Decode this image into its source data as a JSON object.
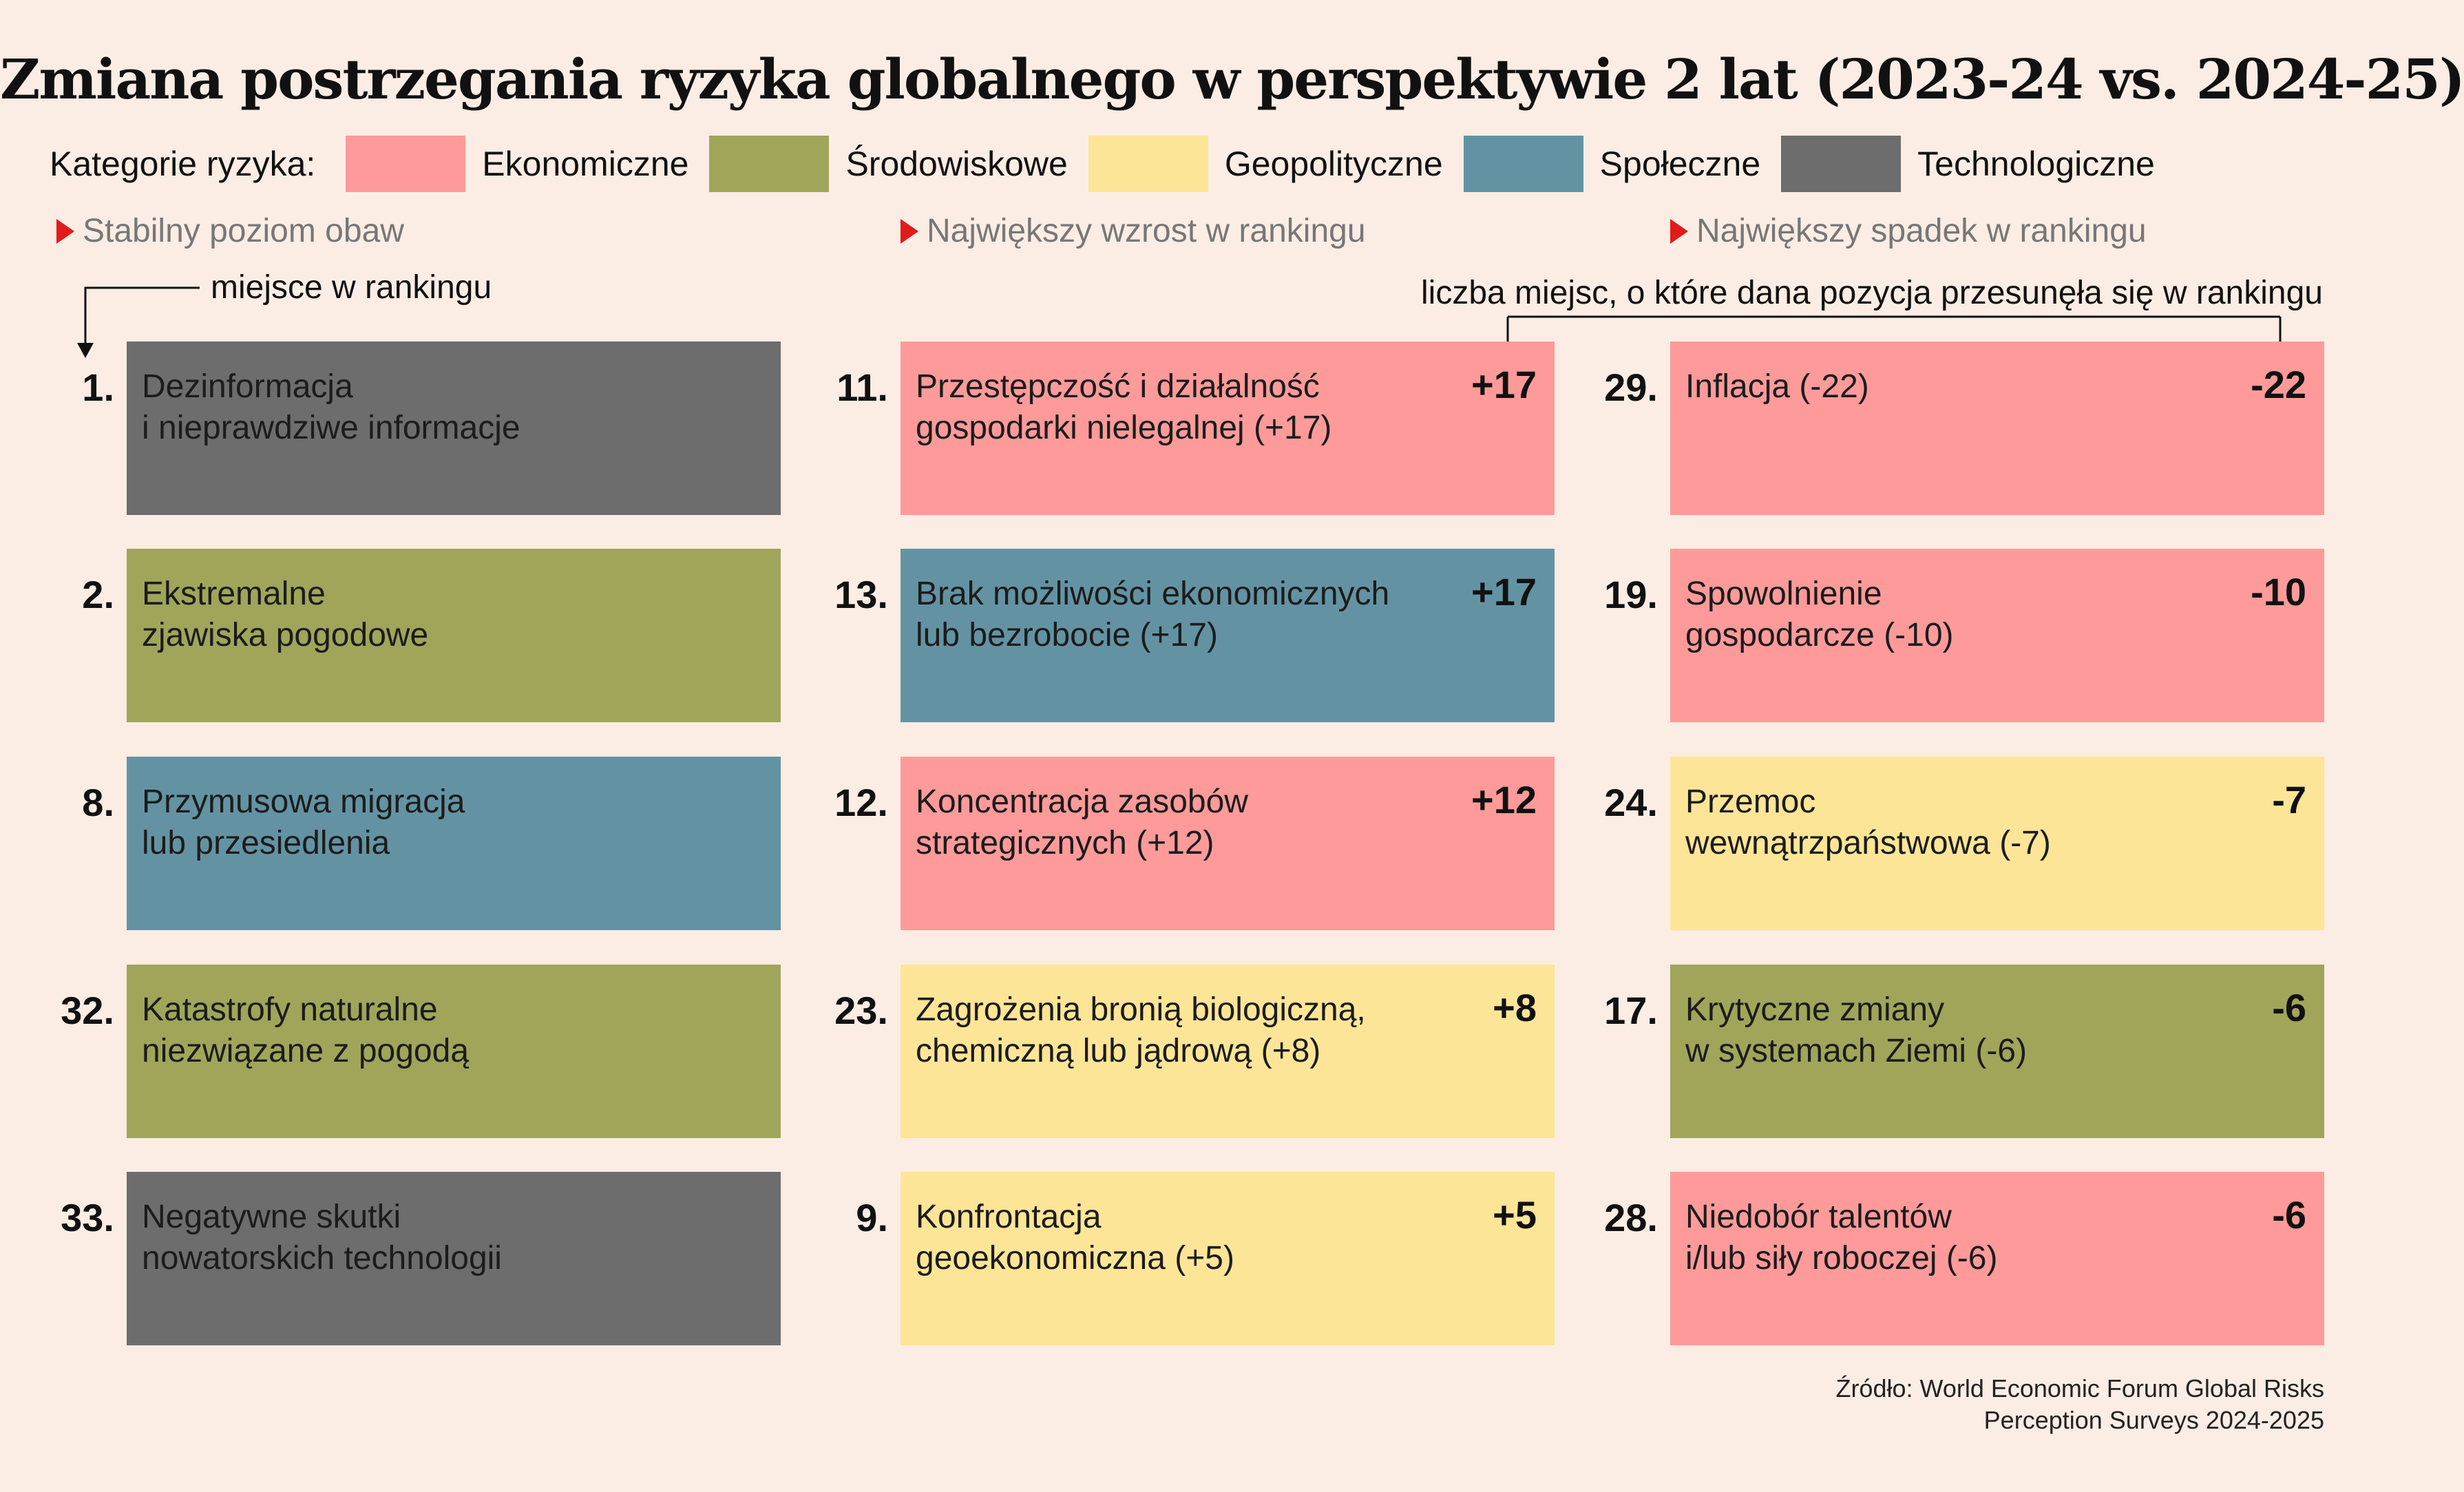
{
  "title": "Zmiana postrzegania ryzyka globalnego w perspektywie 2 lat (2023-24 vs. 2024-25)",
  "legend": {
    "label": "Kategorie ryzyka:",
    "items": [
      {
        "name": "Ekonomiczne",
        "color": "#fe9a9a"
      },
      {
        "name": "Środowiskowe",
        "color": "#a0a55a"
      },
      {
        "name": "Geopolityczne",
        "color": "#fde597"
      },
      {
        "name": "Społeczne",
        "color": "#6393a3"
      },
      {
        "name": "Technologiczne",
        "color": "#6d6d6d"
      }
    ]
  },
  "columns": [
    {
      "header": "Stabilny poziom obaw",
      "items": [
        {
          "rank": "1.",
          "line1": "Dezinformacja",
          "line2": "i nieprawdziwe informacje",
          "category": "Technologiczne",
          "color": "#6d6d6d",
          "change": ""
        },
        {
          "rank": "2.",
          "line1": "Ekstremalne",
          "line2": "zjawiska pogodowe",
          "category": "Środowiskowe",
          "color": "#a0a55a",
          "change": ""
        },
        {
          "rank": "8.",
          "line1": "Przymusowa migracja",
          "line2": "lub przesiedlenia",
          "category": "Społeczne",
          "color": "#6393a3",
          "change": ""
        },
        {
          "rank": "32.",
          "line1": "Katastrofy naturalne",
          "line2": "niezwiązane z pogodą",
          "category": "Środowiskowe",
          "color": "#a0a55a",
          "change": ""
        },
        {
          "rank": "33.",
          "line1": "Negatywne skutki",
          "line2": "nowatorskich technologii",
          "category": "Technologiczne",
          "color": "#6d6d6d",
          "change": ""
        }
      ]
    },
    {
      "header": "Największy wzrost w rankingu",
      "items": [
        {
          "rank": "11.",
          "line1": "Przestępczość i działalność",
          "line2": "gospodarki nielegalnej (+17)",
          "category": "Ekonomiczne",
          "color": "#fe9a9a",
          "change": "+17"
        },
        {
          "rank": "13.",
          "line1": "Brak możliwości ekonomicznych",
          "line2": "lub bezrobocie (+17)",
          "category": "Społeczne",
          "color": "#6393a3",
          "change": "+17"
        },
        {
          "rank": "12.",
          "line1": "Koncentracja zasobów",
          "line2": "strategicznych (+12)",
          "category": "Ekonomiczne",
          "color": "#fe9a9a",
          "change": "+12"
        },
        {
          "rank": "23.",
          "line1": "Zagrożenia bronią biologiczną,",
          "line2": "chemiczną lub jądrową (+8)",
          "category": "Geopolityczne",
          "color": "#fde597",
          "change": "+8"
        },
        {
          "rank": "9.",
          "line1": "Konfrontacja",
          "line2": "geoekonomiczna (+5)",
          "category": "Geopolityczne",
          "color": "#fde597",
          "change": "+5"
        }
      ]
    },
    {
      "header": "Największy spadek w rankingu",
      "items": [
        {
          "rank": "29.",
          "line1": "Inflacja (-22)",
          "line2": "",
          "category": "Ekonomiczne",
          "color": "#fe9a9a",
          "change": "-22"
        },
        {
          "rank": "19.",
          "line1": "Spowolnienie",
          "line2": "gospodarcze (-10)",
          "category": "Ekonomiczne",
          "color": "#fe9a9a",
          "change": "-10"
        },
        {
          "rank": "24.",
          "line1": "Przemoc",
          "line2": "wewnątrzpaństwowa (-7)",
          "category": "Geopolityczne",
          "color": "#fde597",
          "change": "-7"
        },
        {
          "rank": "17.",
          "line1": "Krytyczne zmiany",
          "line2": "w systemach Ziemi (-6)",
          "category": "Środowiskowe",
          "color": "#a0a55a",
          "change": "-6"
        },
        {
          "rank": "28.",
          "line1": "Niedobór talentów",
          "line2": "i/lub siły roboczej (-6)",
          "category": "Ekonomiczne",
          "color": "#fe9a9a",
          "change": "-6"
        }
      ]
    }
  ],
  "annotations": {
    "rank_note": "miejsce w rankingu",
    "change_note": "liczba miejsc, o które dana pozycja przesunęła się w rankingu"
  },
  "source": {
    "line1": "Źródło: World Economic Forum Global Risks",
    "line2": "Perception Surveys 2024-2025"
  }
}
